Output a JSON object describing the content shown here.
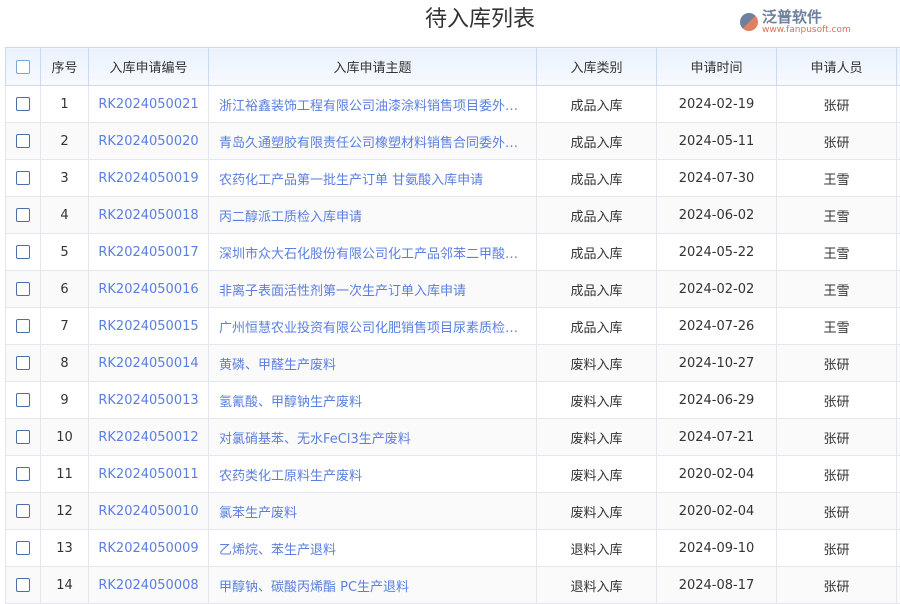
{
  "title": "待入库列表",
  "columns": [
    "序号",
    "入库申请编号",
    "入库申请主题",
    "入库类别",
    "申请时间",
    "申请人员"
  ],
  "rows": [
    {
      "no": "1",
      "code": "RK2024050021",
      "subject": "浙江裕鑫装饰工程有限公司油漆涂料销售项目委外…",
      "type": "成品入库",
      "date": "2024-02-19",
      "person": "张研"
    },
    {
      "no": "2",
      "code": "RK2024050020",
      "subject": "青岛久通塑胶有限责任公司橡塑材料销售合同委外…",
      "type": "成品入库",
      "date": "2024-05-11",
      "person": "张研"
    },
    {
      "no": "3",
      "code": "RK2024050019",
      "subject": "农药化工产品第一批生产订单 甘氨酸入库申请",
      "type": "成品入库",
      "date": "2024-07-30",
      "person": "王雪"
    },
    {
      "no": "4",
      "code": "RK2024050018",
      "subject": "丙二醇派工质检入库申请",
      "type": "成品入库",
      "date": "2024-06-02",
      "person": "王雪"
    },
    {
      "no": "5",
      "code": "RK2024050017",
      "subject": "深圳市众大石化股份有限公司化工产品邻苯二甲酸…",
      "type": "成品入库",
      "date": "2024-05-22",
      "person": "王雪"
    },
    {
      "no": "6",
      "code": "RK2024050016",
      "subject": "非离子表面活性剂第一次生产订单入库申请",
      "type": "成品入库",
      "date": "2024-02-02",
      "person": "王雪"
    },
    {
      "no": "7",
      "code": "RK2024050015",
      "subject": "广州恒慧农业投资有限公司化肥销售项目尿素质检…",
      "type": "成品入库",
      "date": "2024-07-26",
      "person": "王雪"
    },
    {
      "no": "8",
      "code": "RK2024050014",
      "subject": "黄磷、甲醛生产废料",
      "type": "废料入库",
      "date": "2024-10-27",
      "person": "张研"
    },
    {
      "no": "9",
      "code": "RK2024050013",
      "subject": "氢氰酸、甲醇钠生产废料",
      "type": "废料入库",
      "date": "2024-06-29",
      "person": "张研"
    },
    {
      "no": "10",
      "code": "RK2024050012",
      "subject": "对氯硝基苯、无水FeCl3生产废料",
      "type": "废料入库",
      "date": "2024-07-21",
      "person": "张研"
    },
    {
      "no": "11",
      "code": "RK2024050011",
      "subject": "农药类化工原料生产废料",
      "type": "废料入库",
      "date": "2020-02-04",
      "person": "张研"
    },
    {
      "no": "12",
      "code": "RK2024050010",
      "subject": "氯苯生产废料",
      "type": "废料入库",
      "date": "2020-02-04",
      "person": "张研"
    },
    {
      "no": "13",
      "code": "RK2024050009",
      "subject": "乙烯烷、苯生产退料",
      "type": "退料入库",
      "date": "2024-09-10",
      "person": "张研"
    },
    {
      "no": "14",
      "code": "RK2024050008",
      "subject": "甲醇钠、碳酸丙烯酯 PC生产退料",
      "type": "退料入库",
      "date": "2024-08-17",
      "person": "张研"
    }
  ],
  "watermark": {
    "name": "泛普软件",
    "url": "www.fanpusoft.com"
  }
}
